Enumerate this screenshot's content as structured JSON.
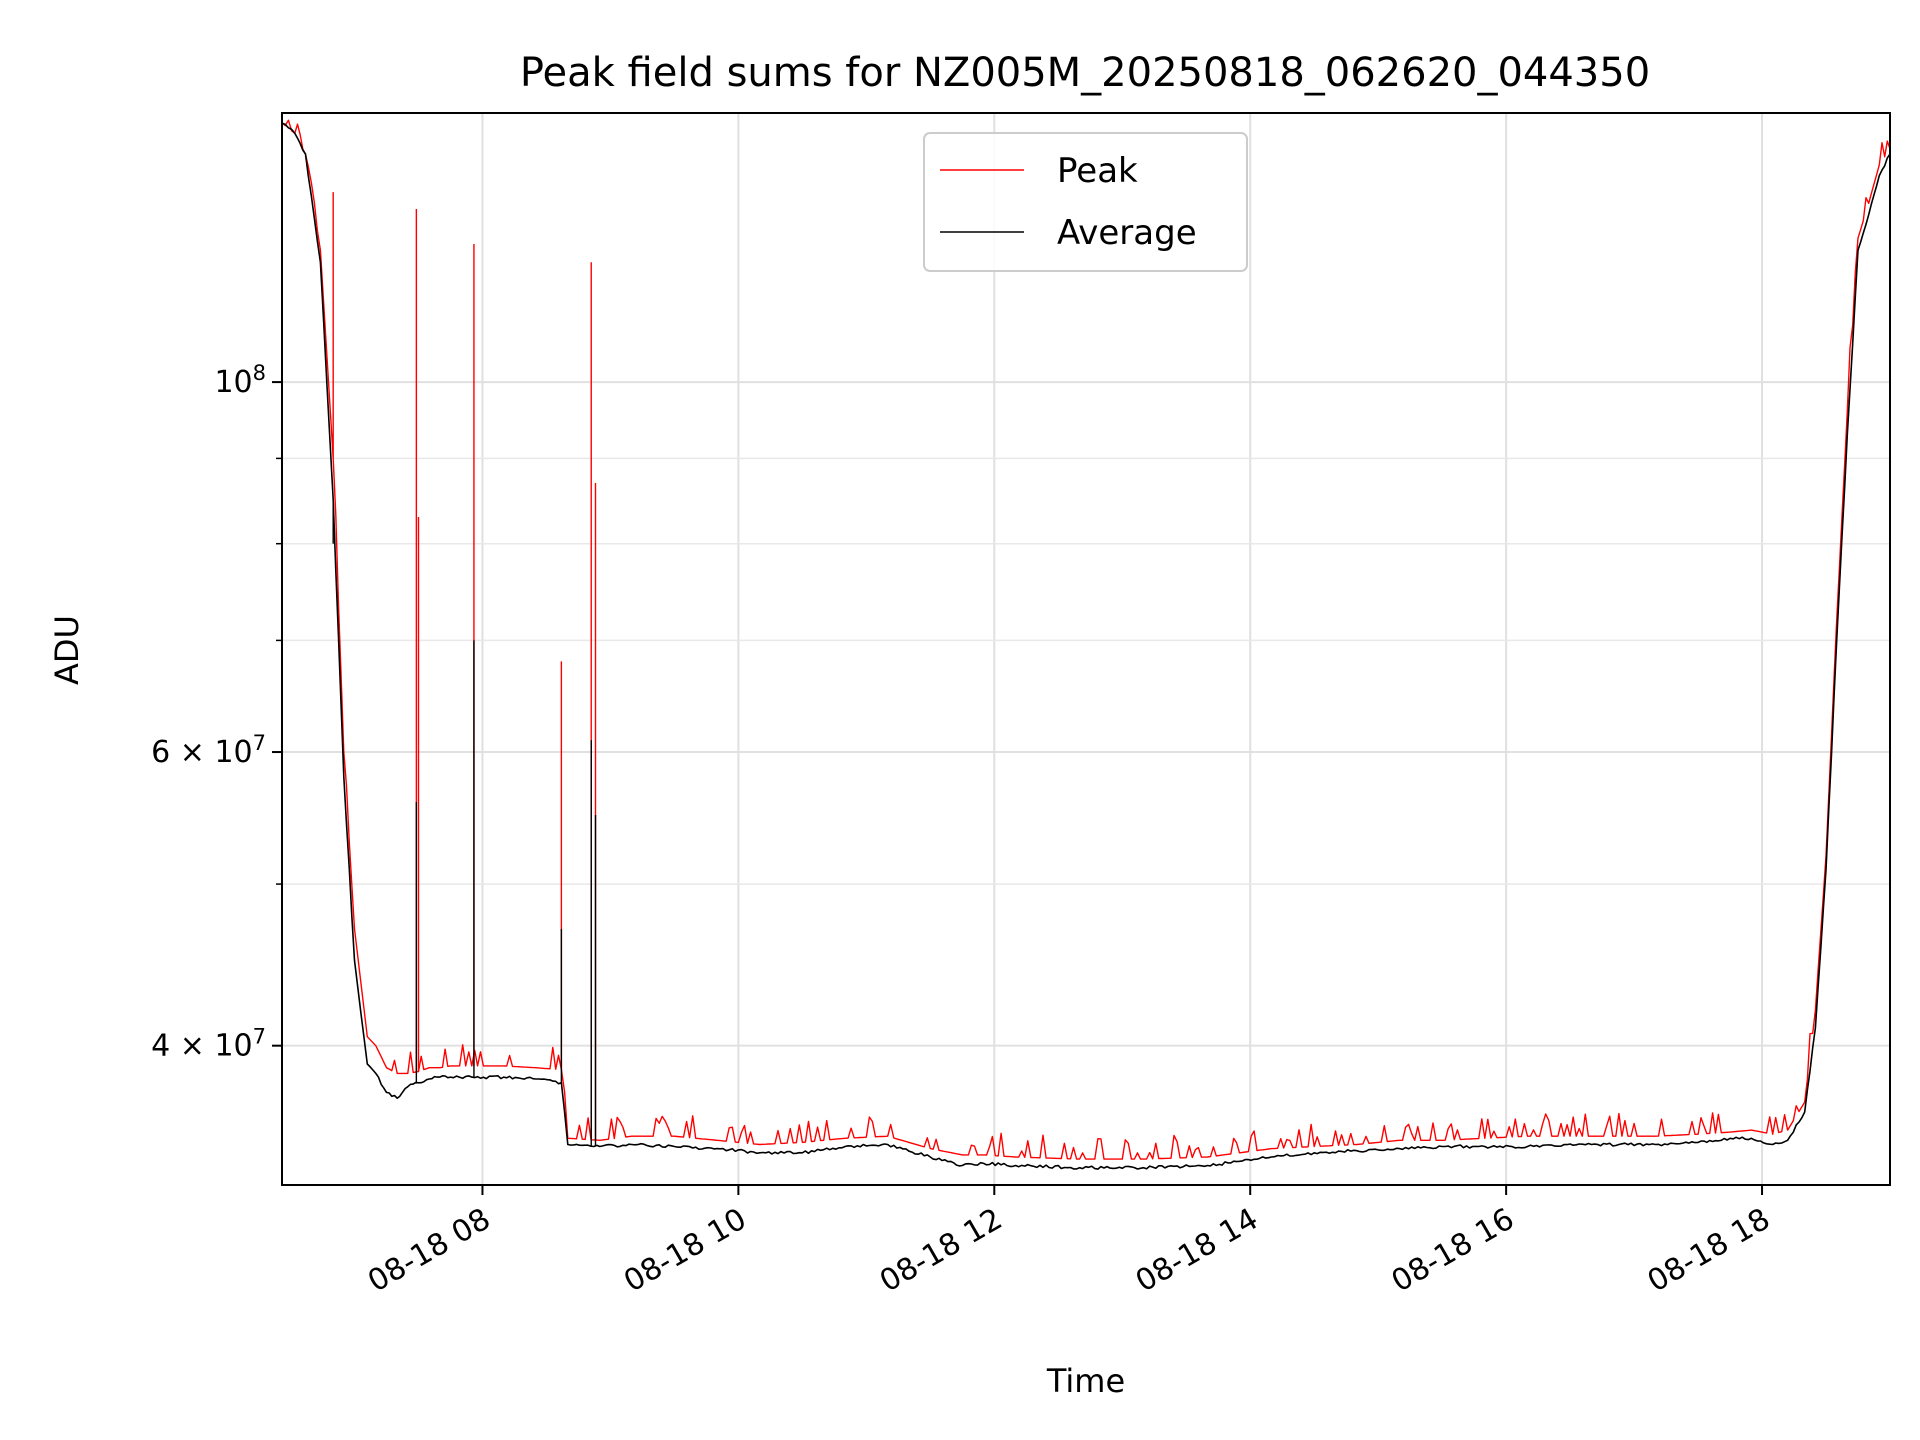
{
  "chart_data": {
    "type": "line",
    "title": "Peak field sums for NZ005M_20250818_062620_044350",
    "xlabel": "Time",
    "ylabel": "ADU",
    "x_axis": {
      "type": "datetime",
      "range": [
        "2025-08-18 06:26",
        "2025-08-18 19:00"
      ],
      "ticks": [
        {
          "value": "2025-08-18 08:00",
          "label": "08-18 08"
        },
        {
          "value": "2025-08-18 10:00",
          "label": "08-18 10"
        },
        {
          "value": "2025-08-18 12:00",
          "label": "08-18 12"
        },
        {
          "value": "2025-08-18 14:00",
          "label": "08-18 14"
        },
        {
          "value": "2025-08-18 16:00",
          "label": "08-18 16"
        },
        {
          "value": "2025-08-18 18:00",
          "label": "08-18 18"
        }
      ]
    },
    "y_axis": {
      "scale": "log",
      "range": [
        33000000,
        145000000
      ],
      "major_ticks": [
        {
          "value": 40000000,
          "label": "4 × 10^7",
          "mantissa": "4",
          "exponent": "7"
        },
        {
          "value": 60000000,
          "label": "6 × 10^7",
          "mantissa": "6",
          "exponent": "7"
        },
        {
          "value": 100000000,
          "label": "10^8",
          "mantissa": "",
          "exponent": "8"
        }
      ],
      "minor_ticks": [
        50000000,
        70000000,
        80000000,
        90000000
      ],
      "grid": true
    },
    "legend": {
      "position": "upper center"
    },
    "series": [
      {
        "name": "Peak",
        "color": "#ff0000",
        "x": [
          "2025-08-18 06:26",
          "2025-08-18 06:32",
          "2025-08-18 06:37",
          "2025-08-18 06:44",
          "2025-08-18 06:50",
          "2025-08-18 06:55",
          "2025-08-18 07:00",
          "2025-08-18 07:06",
          "2025-08-18 07:10",
          "2025-08-18 07:15",
          "2025-08-18 07:20",
          "2025-08-18 07:25",
          "2025-08-18 07:30",
          "2025-08-18 07:35",
          "2025-08-18 07:40",
          "2025-08-18 07:45",
          "2025-08-18 07:55",
          "2025-08-18 08:10",
          "2025-08-18 08:25",
          "2025-08-18 08:37",
          "2025-08-18 08:40",
          "2025-08-18 08:55",
          "2025-08-18 09:10",
          "2025-08-18 09:30",
          "2025-08-18 09:50",
          "2025-08-18 10:10",
          "2025-08-18 10:30",
          "2025-08-18 10:50",
          "2025-08-18 11:10",
          "2025-08-18 11:30",
          "2025-08-18 11:45",
          "2025-08-18 11:55",
          "2025-08-18 12:10",
          "2025-08-18 12:40",
          "2025-08-18 13:10",
          "2025-08-18 13:40",
          "2025-08-18 13:55",
          "2025-08-18 14:10",
          "2025-08-18 14:30",
          "2025-08-18 14:50",
          "2025-08-18 15:10",
          "2025-08-18 15:30",
          "2025-08-18 15:50",
          "2025-08-18 16:10",
          "2025-08-18 16:40",
          "2025-08-18 17:10",
          "2025-08-18 17:30",
          "2025-08-18 17:45",
          "2025-08-18 17:55",
          "2025-08-18 18:05",
          "2025-08-18 18:12",
          "2025-08-18 18:20",
          "2025-08-18 18:25",
          "2025-08-18 18:30",
          "2025-08-18 18:35",
          "2025-08-18 18:40",
          "2025-08-18 18:45",
          "2025-08-18 18:50",
          "2025-08-18 18:55",
          "2025-08-18 19:00"
        ],
        "y": [
          143000000,
          141000000,
          137000000,
          120000000,
          90000000,
          60000000,
          47000000,
          40500000,
          40000000,
          38800000,
          38500000,
          38500000,
          38600000,
          38800000,
          38800000,
          38900000,
          38900000,
          38900000,
          38800000,
          38700000,
          35200000,
          35100000,
          35300000,
          35300000,
          35100000,
          34900000,
          35000000,
          35200000,
          35300000,
          34700000,
          34400000,
          34400000,
          34300000,
          34200000,
          34200000,
          34300000,
          34500000,
          34700000,
          34800000,
          34900000,
          35100000,
          35100000,
          35200000,
          35300000,
          35300000,
          35300000,
          35400000,
          35500000,
          35600000,
          35400000,
          35600000,
          37000000,
          42000000,
          52000000,
          72000000,
          96000000,
          122000000,
          128000000,
          135000000,
          138000000
        ],
        "spikes": [
          {
            "x": "2025-08-18 06:50",
            "y": 130000000
          },
          {
            "x": "2025-08-18 07:29",
            "y": 127000000
          },
          {
            "x": "2025-08-18 07:30",
            "y": 83000000
          },
          {
            "x": "2025-08-18 07:56",
            "y": 121000000
          },
          {
            "x": "2025-08-18 08:37",
            "y": 68000000
          },
          {
            "x": "2025-08-18 08:51",
            "y": 118000000
          },
          {
            "x": "2025-08-18 08:53",
            "y": 87000000
          }
        ]
      },
      {
        "name": "Average",
        "color": "#000000",
        "x": [
          "2025-08-18 06:26",
          "2025-08-18 06:32",
          "2025-08-18 06:37",
          "2025-08-18 06:44",
          "2025-08-18 06:50",
          "2025-08-18 06:55",
          "2025-08-18 07:00",
          "2025-08-18 07:06",
          "2025-08-18 07:10",
          "2025-08-18 07:15",
          "2025-08-18 07:20",
          "2025-08-18 07:25",
          "2025-08-18 07:30",
          "2025-08-18 07:35",
          "2025-08-18 07:40",
          "2025-08-18 07:45",
          "2025-08-18 07:55",
          "2025-08-18 08:10",
          "2025-08-18 08:25",
          "2025-08-18 08:37",
          "2025-08-18 08:40",
          "2025-08-18 08:55",
          "2025-08-18 09:10",
          "2025-08-18 09:30",
          "2025-08-18 09:50",
          "2025-08-18 10:10",
          "2025-08-18 10:30",
          "2025-08-18 10:50",
          "2025-08-18 11:10",
          "2025-08-18 11:30",
          "2025-08-18 11:45",
          "2025-08-18 11:55",
          "2025-08-18 12:10",
          "2025-08-18 12:40",
          "2025-08-18 13:10",
          "2025-08-18 13:40",
          "2025-08-18 13:55",
          "2025-08-18 14:10",
          "2025-08-18 14:30",
          "2025-08-18 14:50",
          "2025-08-18 15:10",
          "2025-08-18 15:30",
          "2025-08-18 15:50",
          "2025-08-18 16:10",
          "2025-08-18 16:40",
          "2025-08-18 17:10",
          "2025-08-18 17:30",
          "2025-08-18 17:45",
          "2025-08-18 17:55",
          "2025-08-18 18:05",
          "2025-08-18 18:12",
          "2025-08-18 18:20",
          "2025-08-18 18:25",
          "2025-08-18 18:30",
          "2025-08-18 18:35",
          "2025-08-18 18:40",
          "2025-08-18 18:45",
          "2025-08-18 18:50",
          "2025-08-18 18:55",
          "2025-08-18 19:00"
        ],
        "y": [
          143000000,
          141000000,
          137000000,
          118000000,
          85000000,
          58000000,
          45000000,
          39000000,
          38500000,
          37500000,
          37200000,
          37800000,
          38000000,
          38200000,
          38300000,
          38300000,
          38300000,
          38300000,
          38200000,
          38000000,
          34900000,
          34800000,
          34900000,
          34800000,
          34700000,
          34500000,
          34500000,
          34800000,
          34900000,
          34300000,
          33900000,
          34000000,
          33900000,
          33800000,
          33800000,
          33900000,
          34100000,
          34300000,
          34500000,
          34600000,
          34700000,
          34800000,
          34800000,
          34800000,
          34900000,
          34900000,
          35000000,
          35200000,
          35200000,
          34900000,
          35100000,
          36500000,
          41000000,
          51000000,
          70000000,
          93000000,
          120000000,
          126000000,
          133000000,
          137000000
        ],
        "spikes": [
          {
            "x": "2025-08-18 06:50",
            "y": 80000000
          },
          {
            "x": "2025-08-18 07:29",
            "y": 56000000
          },
          {
            "x": "2025-08-18 07:56",
            "y": 70000000
          },
          {
            "x": "2025-08-18 08:37",
            "y": 47000000
          },
          {
            "x": "2025-08-18 08:51",
            "y": 61000000
          },
          {
            "x": "2025-08-18 08:53",
            "y": 55000000
          }
        ]
      }
    ]
  }
}
